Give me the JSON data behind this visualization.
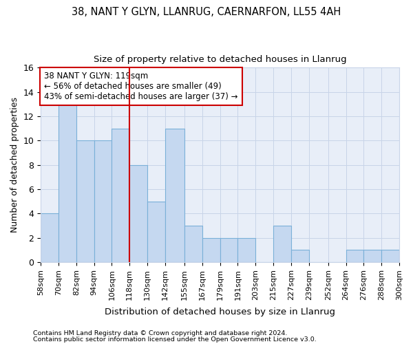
{
  "title1": "38, NANT Y GLYN, LLANRUG, CAERNARFON, LL55 4AH",
  "title2": "Size of property relative to detached houses in Llanrug",
  "xlabel": "Distribution of detached houses by size in Llanrug",
  "ylabel": "Number of detached properties",
  "footer1": "Contains HM Land Registry data © Crown copyright and database right 2024.",
  "footer2": "Contains public sector information licensed under the Open Government Licence v3.0.",
  "annotation_line1": "38 NANT Y GLYN: 119sqm",
  "annotation_line2": "← 56% of detached houses are smaller (49)",
  "annotation_line3": "43% of semi-detached houses are larger (37) →",
  "bar_edges": [
    58,
    70,
    82,
    94,
    106,
    118,
    130,
    142,
    155,
    167,
    179,
    191,
    203,
    215,
    227,
    239,
    252,
    264,
    276,
    288,
    300
  ],
  "bar_heights": [
    4,
    13,
    10,
    10,
    11,
    8,
    5,
    11,
    3,
    2,
    2,
    2,
    0,
    3,
    1,
    0,
    0,
    1,
    1,
    1
  ],
  "bar_color": "#c5d8f0",
  "bar_edge_color": "#7ab0d8",
  "vline_color": "#cc0000",
  "vline_x": 118,
  "annotation_box_color": "#cc0000",
  "grid_color": "#c8d4e8",
  "background_color": "#ffffff",
  "plot_bg_color": "#e8eef8",
  "ylim": [
    0,
    16
  ],
  "yticks": [
    0,
    2,
    4,
    6,
    8,
    10,
    12,
    14,
    16
  ]
}
